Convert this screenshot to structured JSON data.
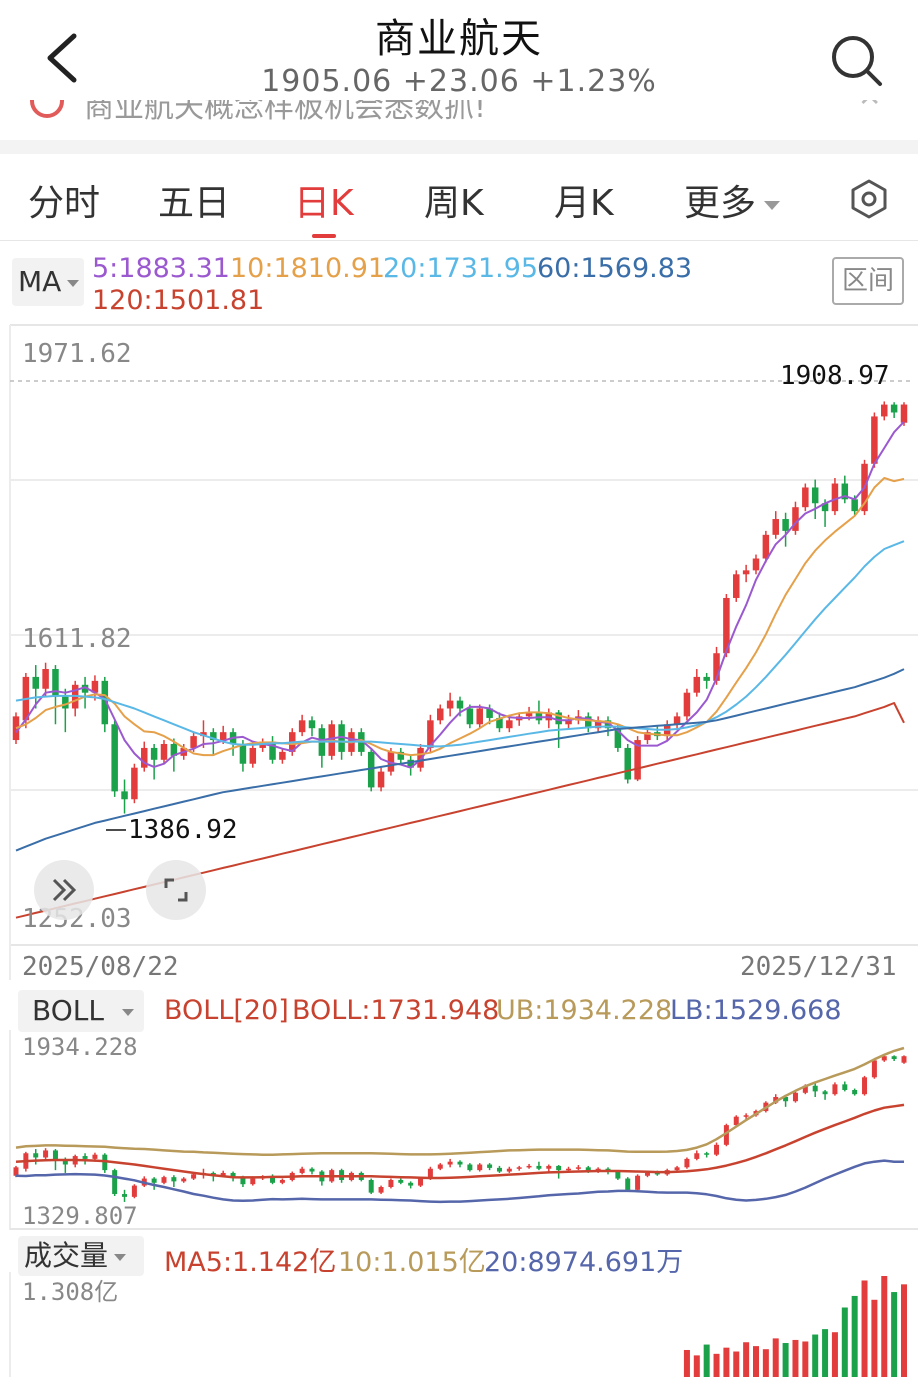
{
  "header": {
    "title": "商业航天",
    "quote": "1905.06  +23.06  +1.23%"
  },
  "ticker": {
    "text": "商业航天概念样板机会悉数抓!"
  },
  "tabs": [
    "分时",
    "五日",
    "日K",
    "周K",
    "月K",
    "更多"
  ],
  "active_tab": 2,
  "ma_panel": {
    "selector": "MA",
    "ma5": "5:1883.31",
    "ma10": "10:1810.91",
    "ma20": "20:1731.95",
    "ma60": "60:1569.83",
    "ma120": "120:1501.81",
    "interval_button": "区间"
  },
  "kline_axis": {
    "top": "1971.62",
    "mid": "1611.82",
    "bottom": "1252.03",
    "start_date": "2025/08/22",
    "end_date": "2025/12/31"
  },
  "annotations": {
    "high": "1908.97",
    "low": "1386.92"
  },
  "boll_panel": {
    "selector": "BOLL",
    "name": "BOLL[20]",
    "boll": "BOLL:1731.948",
    "ub": "UB:1934.228",
    "lb": "LB:1529.668",
    "axis_top": "1934.228",
    "axis_bottom": "1329.807"
  },
  "volume_panel": {
    "selector": "成交量",
    "ma5": "MA5:1.142亿",
    "ma10": "10:1.015亿",
    "ma20": "20:8974.691万",
    "axis_top": "1.308亿"
  },
  "colors": {
    "up": "#e23c3c",
    "down": "#1aa14a",
    "ma5": "#9b59d0",
    "ma10": "#e5a04a",
    "ma20": "#5ab8e6",
    "ma60": "#3a6ea8",
    "ma120": "#c8432f",
    "boll_mid": "#c8432f",
    "boll_ub": "#b89a5a",
    "boll_lb": "#5566aa"
  },
  "chart_data": {
    "type": "candlestick",
    "ylim": [
      1252.03,
      1971.62
    ],
    "x_range": [
      "2025/08/22",
      "2025/12/31"
    ],
    "candles": [
      [
        1480,
        1510,
        1475,
        1515
      ],
      [
        1505,
        1560,
        1495,
        1565
      ],
      [
        1560,
        1545,
        1520,
        1575
      ],
      [
        1545,
        1570,
        1535,
        1578
      ],
      [
        1570,
        1535,
        1500,
        1575
      ],
      [
        1535,
        1520,
        1490,
        1545
      ],
      [
        1520,
        1550,
        1510,
        1555
      ],
      [
        1550,
        1540,
        1520,
        1560
      ],
      [
        1540,
        1555,
        1530,
        1562
      ],
      [
        1555,
        1500,
        1490,
        1560
      ],
      [
        1500,
        1415,
        1408,
        1505
      ],
      [
        1415,
        1405,
        1386.92,
        1430
      ],
      [
        1405,
        1445,
        1400,
        1450
      ],
      [
        1445,
        1470,
        1440,
        1478
      ],
      [
        1470,
        1455,
        1430,
        1475
      ],
      [
        1455,
        1475,
        1450,
        1480
      ],
      [
        1475,
        1460,
        1440,
        1482
      ],
      [
        1460,
        1470,
        1455,
        1475
      ],
      [
        1470,
        1485,
        1465,
        1490
      ],
      [
        1485,
        1490,
        1470,
        1505
      ],
      [
        1490,
        1480,
        1460,
        1495
      ],
      [
        1480,
        1490,
        1475,
        1498
      ],
      [
        1490,
        1475,
        1460,
        1495
      ],
      [
        1475,
        1450,
        1440,
        1480
      ],
      [
        1450,
        1470,
        1445,
        1478
      ],
      [
        1470,
        1478,
        1465,
        1482
      ],
      [
        1478,
        1455,
        1450,
        1485
      ],
      [
        1455,
        1465,
        1450,
        1470
      ],
      [
        1465,
        1490,
        1460,
        1495
      ],
      [
        1490,
        1505,
        1485,
        1512
      ],
      [
        1505,
        1495,
        1485,
        1510
      ],
      [
        1495,
        1460,
        1445,
        1500
      ],
      [
        1460,
        1500,
        1455,
        1505
      ],
      [
        1500,
        1465,
        1455,
        1505
      ],
      [
        1465,
        1490,
        1460,
        1495
      ],
      [
        1490,
        1465,
        1460,
        1495
      ],
      [
        1465,
        1420,
        1415,
        1470
      ],
      [
        1420,
        1440,
        1415,
        1445
      ],
      [
        1440,
        1465,
        1435,
        1470
      ],
      [
        1465,
        1455,
        1450,
        1470
      ],
      [
        1455,
        1445,
        1435,
        1460
      ],
      [
        1445,
        1470,
        1440,
        1475
      ],
      [
        1470,
        1505,
        1465,
        1512
      ],
      [
        1505,
        1520,
        1500,
        1525
      ],
      [
        1520,
        1530,
        1510,
        1540
      ],
      [
        1530,
        1520,
        1510,
        1535
      ],
      [
        1520,
        1500,
        1495,
        1525
      ],
      [
        1500,
        1520,
        1495,
        1525
      ],
      [
        1520,
        1508,
        1500,
        1525
      ],
      [
        1508,
        1495,
        1490,
        1515
      ],
      [
        1495,
        1505,
        1490,
        1512
      ],
      [
        1505,
        1510,
        1498,
        1515
      ],
      [
        1510,
        1515,
        1505,
        1522
      ],
      [
        1515,
        1505,
        1500,
        1530
      ],
      [
        1505,
        1515,
        1495,
        1520
      ],
      [
        1515,
        1500,
        1470,
        1518
      ],
      [
        1500,
        1505,
        1495,
        1512
      ],
      [
        1505,
        1510,
        1500,
        1518
      ],
      [
        1510,
        1495,
        1490,
        1515
      ],
      [
        1495,
        1505,
        1490,
        1510
      ],
      [
        1505,
        1495,
        1485,
        1510
      ],
      [
        1495,
        1470,
        1465,
        1500
      ],
      [
        1470,
        1430,
        1425,
        1475
      ],
      [
        1430,
        1480,
        1428,
        1485
      ],
      [
        1480,
        1490,
        1475,
        1495
      ],
      [
        1490,
        1485,
        1480,
        1498
      ],
      [
        1485,
        1500,
        1480,
        1505
      ],
      [
        1500,
        1510,
        1495,
        1515
      ],
      [
        1510,
        1540,
        1505,
        1545
      ],
      [
        1540,
        1560,
        1535,
        1570
      ],
      [
        1560,
        1555,
        1545,
        1565
      ],
      [
        1555,
        1590,
        1550,
        1598
      ],
      [
        1590,
        1660,
        1585,
        1665
      ],
      [
        1660,
        1690,
        1655,
        1695
      ],
      [
        1690,
        1695,
        1680,
        1702
      ],
      [
        1695,
        1710,
        1690,
        1715
      ],
      [
        1710,
        1740,
        1705,
        1745
      ],
      [
        1740,
        1760,
        1735,
        1770
      ],
      [
        1760,
        1745,
        1725,
        1768
      ],
      [
        1745,
        1775,
        1740,
        1782
      ],
      [
        1775,
        1800,
        1770,
        1805
      ],
      [
        1800,
        1780,
        1760,
        1810
      ],
      [
        1780,
        1770,
        1750,
        1785
      ],
      [
        1770,
        1805,
        1765,
        1812
      ],
      [
        1805,
        1785,
        1780,
        1815
      ],
      [
        1785,
        1770,
        1765,
        1790
      ],
      [
        1770,
        1830,
        1765,
        1835
      ],
      [
        1830,
        1890,
        1825,
        1895
      ],
      [
        1890,
        1905,
        1885,
        1908.97
      ],
      [
        1905,
        1895,
        1888,
        1908
      ],
      [
        1882,
        1905.06,
        1878,
        1908
      ]
    ],
    "series": [
      {
        "name": "MA5",
        "values": [
          1490,
          1506,
          1525,
          1540,
          1542,
          1540,
          1543,
          1547,
          1540,
          1532,
          1506,
          1480,
          1463,
          1451,
          1446,
          1450,
          1461,
          1465,
          1469,
          1475,
          1476,
          1479,
          1483,
          1484,
          1478,
          1475,
          1473,
          1469,
          1466,
          1477,
          1483,
          1480,
          1482,
          1484,
          1481,
          1480,
          1469,
          1456,
          1451,
          1449,
          1445,
          1455,
          1473,
          1487,
          1502,
          1515,
          1522,
          1522,
          1520,
          1513,
          1509,
          1508,
          1508,
          1509,
          1509,
          1505,
          1505,
          1508,
          1507,
          1503,
          1502,
          1492,
          1480,
          1473,
          1473,
          1473,
          1479,
          1491,
          1503,
          1515,
          1531,
          1558,
          1593,
          1624,
          1651,
          1683,
          1707,
          1728,
          1740,
          1755,
          1767,
          1773,
          1780,
          1785,
          1789,
          1785,
          1800,
          1830,
          1850,
          1870,
          1883.31
        ]
      },
      {
        "name": "MA10",
        "values": [
          1495,
          1500,
          1508,
          1518,
          1522,
          1525,
          1530,
          1535,
          1538,
          1537,
          1526,
          1510,
          1500,
          1491,
          1490,
          1485,
          1478,
          1470,
          1463,
          1461,
          1461,
          1466,
          1470,
          1474,
          1476,
          1477,
          1477,
          1476,
          1475,
          1476,
          1478,
          1478,
          1479,
          1478,
          1477,
          1480,
          1475,
          1469,
          1465,
          1463,
          1461,
          1462,
          1464,
          1469,
          1476,
          1482,
          1488,
          1495,
          1503,
          1507,
          1511,
          1514,
          1515,
          1515,
          1514,
          1511,
          1508,
          1506,
          1505,
          1504,
          1503,
          1500,
          1495,
          1490,
          1488,
          1487,
          1486,
          1486,
          1490,
          1496,
          1503,
          1516,
          1534,
          1553,
          1571,
          1591,
          1614,
          1640,
          1664,
          1684,
          1704,
          1720,
          1733,
          1744,
          1754,
          1764,
          1780,
          1800,
          1812,
          1808,
          1810.91
        ]
      },
      {
        "name": "MA20",
        "values": [
          1530,
          1532,
          1534,
          1535,
          1536,
          1536,
          1536,
          1535,
          1534,
          1532,
          1528,
          1524,
          1520,
          1515,
          1510,
          1505,
          1500,
          1495,
          1490,
          1486,
          1482,
          1478,
          1475,
          1474,
          1474,
          1475,
          1476,
          1476,
          1477,
          1478,
          1478,
          1478,
          1478,
          1478,
          1478,
          1478,
          1478,
          1477,
          1476,
          1475,
          1474,
          1473,
          1472,
          1472,
          1473,
          1474,
          1476,
          1478,
          1480,
          1482,
          1484,
          1486,
          1488,
          1490,
          1492,
          1493,
          1494,
          1495,
          1496,
          1497,
          1497,
          1497,
          1496,
          1495,
          1494,
          1493,
          1493,
          1494,
          1496,
          1499,
          1503,
          1509,
          1516,
          1525,
          1535,
          1547,
          1560,
          1574,
          1588,
          1603,
          1618,
          1633,
          1647,
          1660,
          1673,
          1686,
          1700,
          1712,
          1722,
          1727,
          1731.95
        ]
      },
      {
        "name": "MA60",
        "values": [
          1340,
          1345,
          1350,
          1355,
          1359,
          1363,
          1367,
          1371,
          1375,
          1378,
          1381,
          1384,
          1387,
          1390,
          1393,
          1396,
          1399,
          1402,
          1405,
          1408,
          1411,
          1414,
          1416,
          1418,
          1420,
          1422,
          1424,
          1426,
          1428,
          1430,
          1432,
          1434,
          1436,
          1438,
          1440,
          1442,
          1444,
          1446,
          1448,
          1450,
          1452,
          1454,
          1456,
          1458,
          1460,
          1462,
          1464,
          1466,
          1468,
          1470,
          1472,
          1474,
          1476,
          1478,
          1480,
          1482,
          1484,
          1486,
          1488,
          1490,
          1492,
          1494,
          1495,
          1496,
          1497,
          1498,
          1499,
          1500,
          1501,
          1502,
          1503,
          1505,
          1508,
          1511,
          1514,
          1517,
          1520,
          1523,
          1526,
          1529,
          1532,
          1535,
          1538,
          1541,
          1544,
          1547,
          1551,
          1555,
          1559,
          1564,
          1569.83
        ]
      },
      {
        "name": "MA120",
        "values": [
          1255,
          1258,
          1261,
          1264,
          1267,
          1270,
          1273,
          1276,
          1279,
          1282,
          1285,
          1288,
          1291,
          1294,
          1297,
          1300,
          1303,
          1306,
          1309,
          1312,
          1315,
          1318,
          1321,
          1324,
          1327,
          1330,
          1333,
          1336,
          1339,
          1342,
          1345,
          1348,
          1351,
          1354,
          1357,
          1360,
          1363,
          1366,
          1369,
          1372,
          1375,
          1378,
          1381,
          1384,
          1387,
          1390,
          1393,
          1396,
          1399,
          1402,
          1405,
          1408,
          1411,
          1414,
          1417,
          1420,
          1423,
          1426,
          1429,
          1432,
          1435,
          1438,
          1441,
          1444,
          1447,
          1450,
          1453,
          1456,
          1459,
          1462,
          1465,
          1468,
          1471,
          1474,
          1477,
          1480,
          1483,
          1486,
          1489,
          1492,
          1495,
          1498,
          1501,
          1504,
          1507,
          1510,
          1514,
          1518,
          1522,
          1527,
          1501.81
        ]
      }
    ],
    "boll_ylim": [
      1329.807,
      1934.228
    ],
    "boll": {
      "ub": [
        1580,
        1585,
        1586,
        1588,
        1588,
        1587,
        1586,
        1585,
        1584,
        1583,
        1580,
        1578,
        1576,
        1575,
        1573,
        1570,
        1568,
        1566,
        1565,
        1563,
        1562,
        1560,
        1558,
        1557,
        1556,
        1555,
        1555,
        1556,
        1557,
        1558,
        1559,
        1560,
        1560,
        1560,
        1560,
        1560,
        1560,
        1559,
        1558,
        1557,
        1556,
        1556,
        1556,
        1557,
        1558,
        1560,
        1562,
        1564,
        1566,
        1568,
        1570,
        1571,
        1572,
        1573,
        1573,
        1573,
        1573,
        1573,
        1572,
        1571,
        1570,
        1568,
        1566,
        1565,
        1565,
        1565,
        1566,
        1568,
        1572,
        1580,
        1592,
        1610,
        1632,
        1655,
        1678,
        1700,
        1722,
        1744,
        1764,
        1782,
        1798,
        1812,
        1824,
        1836,
        1848,
        1860,
        1876,
        1894,
        1910,
        1924,
        1934.228
      ],
      "mid": [
        1530,
        1532,
        1534,
        1535,
        1536,
        1536,
        1536,
        1535,
        1534,
        1532,
        1528,
        1524,
        1520,
        1515,
        1510,
        1505,
        1500,
        1495,
        1490,
        1486,
        1482,
        1478,
        1475,
        1474,
        1474,
        1475,
        1476,
        1476,
        1477,
        1478,
        1478,
        1478,
        1478,
        1478,
        1478,
        1478,
        1478,
        1477,
        1476,
        1475,
        1474,
        1473,
        1472,
        1472,
        1473,
        1474,
        1476,
        1478,
        1480,
        1482,
        1484,
        1486,
        1488,
        1490,
        1492,
        1493,
        1494,
        1495,
        1496,
        1497,
        1497,
        1497,
        1496,
        1495,
        1494,
        1493,
        1493,
        1494,
        1496,
        1499,
        1503,
        1509,
        1516,
        1525,
        1535,
        1547,
        1560,
        1574,
        1588,
        1603,
        1618,
        1633,
        1647,
        1660,
        1673,
        1686,
        1700,
        1712,
        1722,
        1727,
        1731.948
      ],
      "lb": [
        1480,
        1479,
        1482,
        1482,
        1484,
        1485,
        1486,
        1485,
        1484,
        1481,
        1476,
        1470,
        1464,
        1455,
        1447,
        1440,
        1432,
        1424,
        1415,
        1409,
        1402,
        1396,
        1392,
        1391,
        1392,
        1395,
        1397,
        1396,
        1397,
        1398,
        1397,
        1396,
        1396,
        1396,
        1396,
        1396,
        1396,
        1395,
        1394,
        1393,
        1392,
        1390,
        1388,
        1387,
        1388,
        1388,
        1390,
        1392,
        1394,
        1396,
        1398,
        1401,
        1404,
        1407,
        1411,
        1413,
        1415,
        1417,
        1420,
        1423,
        1424,
        1426,
        1426,
        1425,
        1423,
        1421,
        1420,
        1420,
        1420,
        1418,
        1414,
        1408,
        1400,
        1395,
        1392,
        1394,
        1398,
        1404,
        1412,
        1424,
        1438,
        1454,
        1470,
        1484,
        1498,
        1512,
        1524,
        1530,
        1534,
        1530,
        1529.668
      ]
    },
    "volume_ylim": [
      0,
      1.308
    ],
    "volume_tail": [
      0.35,
      0.28,
      0.42,
      0.3,
      0.38,
      0.33,
      0.45,
      0.4,
      0.36,
      0.5,
      0.44,
      0.48,
      0.46,
      0.55,
      0.62,
      0.58,
      0.9,
      1.05,
      1.25,
      1.0,
      1.308,
      1.1,
      1.2
    ]
  }
}
